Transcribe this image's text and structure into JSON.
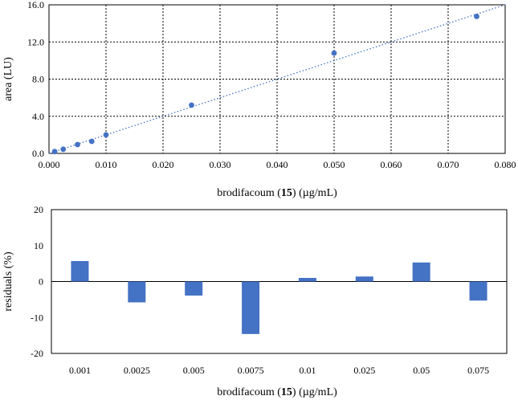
{
  "chart_data": [
    {
      "type": "scatter",
      "xlabel_prefix": "brodifacoum (",
      "xlabel_bold": "15",
      "xlabel_suffix": ") (µg/mL)",
      "ylabel": "area (LU)",
      "xlim": [
        0,
        0.08
      ],
      "ylim": [
        0,
        16
      ],
      "xticks": [
        "0.000",
        "0.010",
        "0.020",
        "0.030",
        "0.040",
        "0.050",
        "0.060",
        "0.070",
        "0.080"
      ],
      "yticks": [
        "0.0",
        "4.0",
        "8.0",
        "12.0",
        "16.0"
      ],
      "grid": true,
      "points": [
        {
          "x": 0.001,
          "y": 0.2
        },
        {
          "x": 0.0025,
          "y": 0.45
        },
        {
          "x": 0.005,
          "y": 0.95
        },
        {
          "x": 0.0075,
          "y": 1.3
        },
        {
          "x": 0.01,
          "y": 2.0
        },
        {
          "x": 0.025,
          "y": 5.2
        },
        {
          "x": 0.05,
          "y": 10.8
        },
        {
          "x": 0.075,
          "y": 14.75
        }
      ],
      "trendline": {
        "x": [
          0,
          0.08
        ],
        "y": [
          0,
          16
        ],
        "style": "dotted"
      },
      "color": "#4472c4"
    },
    {
      "type": "bar",
      "xlabel_prefix": "brodifacoum (",
      "xlabel_bold": "15",
      "xlabel_suffix": ") (µg/mL)",
      "ylabel": "residuals (%)",
      "ylim": [
        -20,
        20
      ],
      "yticks": [
        "20",
        "10",
        "0",
        "-10",
        "-20"
      ],
      "categories": [
        "0.001",
        "0.0025",
        "0.005",
        "0.0075",
        "0.01",
        "0.025",
        "0.05",
        "0.075"
      ],
      "values": [
        5.7,
        -5.8,
        -3.9,
        -14.6,
        1.0,
        1.4,
        5.3,
        -5.3
      ],
      "grid": false,
      "color": "#4472c4"
    }
  ]
}
